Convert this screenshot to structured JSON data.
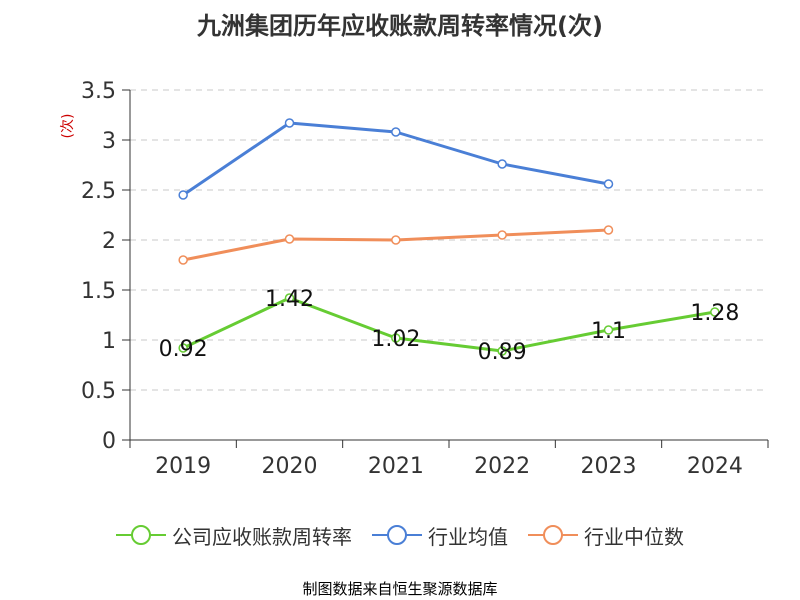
{
  "chart_data": {
    "type": "line",
    "title": "九洲集团历年应收账款周转率情况(次)",
    "ylabel": "(次)",
    "xlabel": "",
    "categories": [
      "2019",
      "2020",
      "2021",
      "2022",
      "2023",
      "2024"
    ],
    "ylim": [
      0,
      3.5
    ],
    "yticks": [
      "0",
      "0.5",
      "1",
      "1.5",
      "2",
      "2.5",
      "3",
      "3.5"
    ],
    "grid": true,
    "legend_position": "bottom",
    "series": [
      {
        "name": "公司应收账款周转率",
        "color": "#66cc33",
        "values": [
          0.92,
          1.42,
          1.02,
          0.89,
          1.1,
          1.28
        ],
        "labels": [
          "0.92",
          "1.42",
          "1.02",
          "0.89",
          "1.1",
          "1.28"
        ]
      },
      {
        "name": "行业均值",
        "color": "#4a7fd6",
        "values": [
          2.45,
          3.17,
          3.08,
          2.76,
          2.56,
          null
        ]
      },
      {
        "name": "行业中位数",
        "color": "#f08e5a",
        "values": [
          1.8,
          2.01,
          2.0,
          2.05,
          2.1,
          null
        ]
      }
    ]
  },
  "source_note": "制图数据来自恒生聚源数据库",
  "colors": {
    "source_note": "#c8a246",
    "ylabel": "#cc0000",
    "axis": "#333333",
    "grid": "#c8c8c8"
  }
}
